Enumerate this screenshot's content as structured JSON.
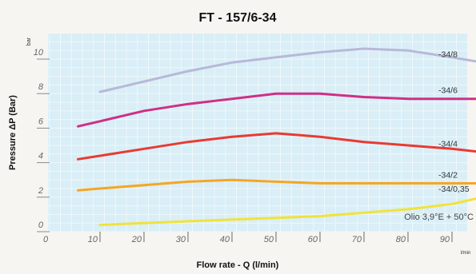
{
  "chart_data": {
    "type": "line",
    "title": "FT - 157/6-34",
    "xlabel": "Flow rate - Q (l/min)",
    "ylabel": "Pressure ΔP (Bar)",
    "y_unit": "bar",
    "x_unit": "l/min",
    "xlim": [
      0,
      100
    ],
    "ylim": [
      0,
      11
    ],
    "x_ticks": [
      10,
      20,
      30,
      40,
      50,
      60,
      70,
      80,
      90
    ],
    "x_tick_labels": [
      "10",
      "20",
      "30",
      "40",
      "50",
      "60",
      "70",
      "80",
      "90"
    ],
    "y_ticks": [
      0,
      2,
      4,
      6,
      8,
      10
    ],
    "y_tick_labels": [
      "0",
      "2",
      "4",
      "6",
      "8",
      "10"
    ],
    "grid": true,
    "annotation": "Olio 3,9°E + 50°C",
    "series": [
      {
        "name": "-34/8",
        "color": "#b7b8d9",
        "x": [
          10,
          20,
          30,
          40,
          50,
          60,
          70,
          80,
          90,
          97
        ],
        "y": [
          8.1,
          8.7,
          9.3,
          9.8,
          10.1,
          10.4,
          10.6,
          10.5,
          10.1,
          9.8
        ]
      },
      {
        "name": "-34/6",
        "color": "#cf2f86",
        "x": [
          5,
          10,
          20,
          30,
          40,
          50,
          60,
          70,
          80,
          90,
          97
        ],
        "y": [
          6.1,
          6.4,
          7.0,
          7.4,
          7.7,
          8.0,
          8.0,
          7.8,
          7.7,
          7.7,
          7.7
        ]
      },
      {
        "name": "-34/4",
        "color": "#e83a33",
        "x": [
          5,
          10,
          20,
          30,
          40,
          50,
          60,
          70,
          80,
          90,
          97
        ],
        "y": [
          4.2,
          4.4,
          4.8,
          5.2,
          5.5,
          5.7,
          5.5,
          5.2,
          5.0,
          4.8,
          4.6
        ]
      },
      {
        "name": "-34/2",
        "color": "#f5a623",
        "x": [
          5,
          10,
          20,
          30,
          40,
          50,
          60,
          70,
          80,
          90,
          97
        ],
        "y": [
          2.4,
          2.5,
          2.7,
          2.9,
          3.0,
          2.9,
          2.8,
          2.8,
          2.8,
          2.8,
          2.8
        ]
      },
      {
        "name": "-34/0,35",
        "color": "#f0e33a",
        "x": [
          10,
          20,
          30,
          40,
          50,
          60,
          70,
          80,
          90,
          97
        ],
        "y": [
          0.4,
          0.5,
          0.6,
          0.7,
          0.8,
          0.9,
          1.1,
          1.3,
          1.6,
          2.0
        ]
      }
    ]
  }
}
